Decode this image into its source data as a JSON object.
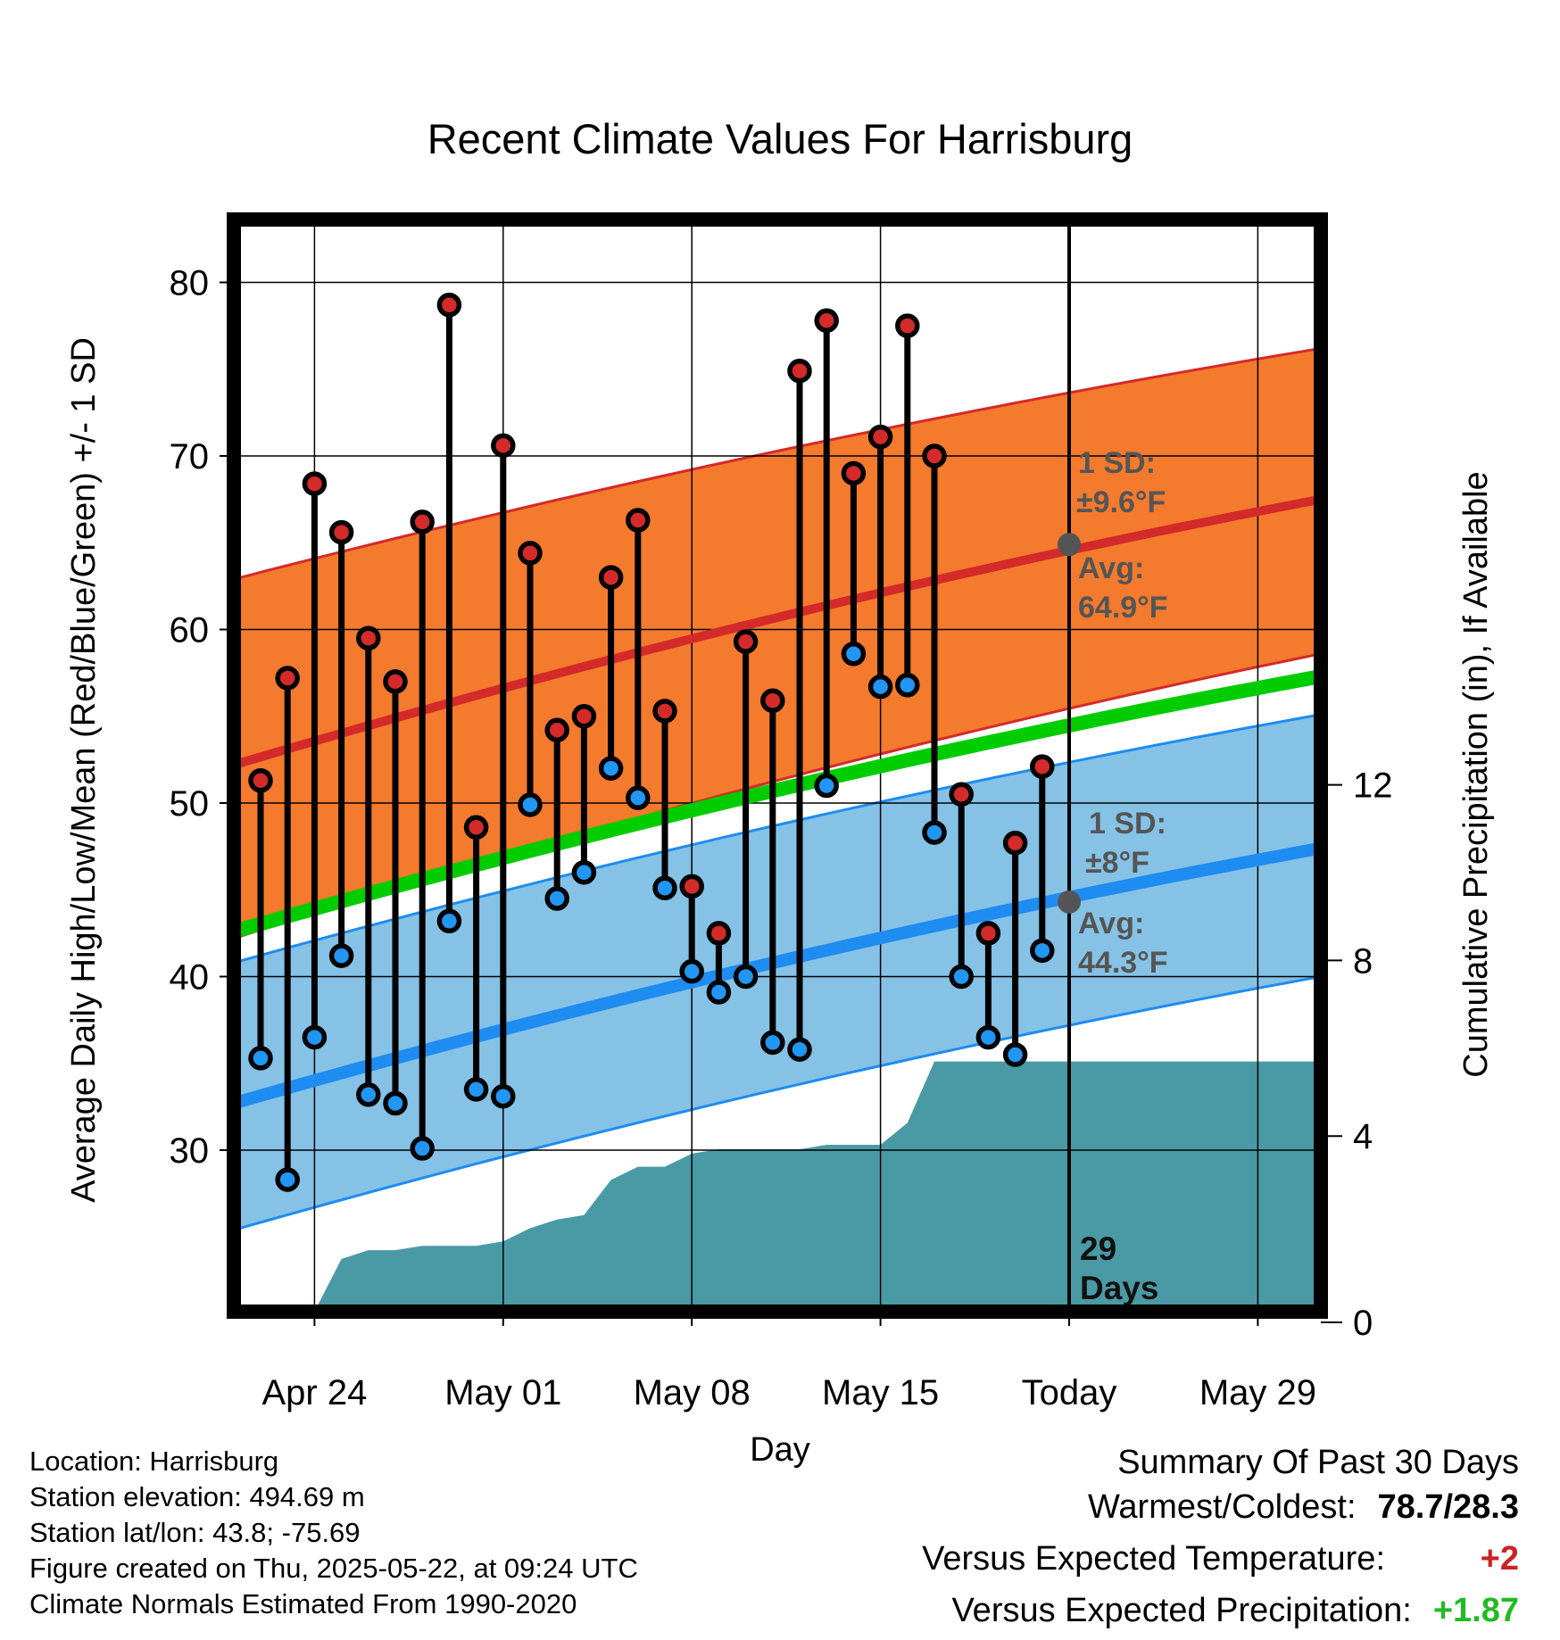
{
  "chart_data": {
    "type": "line",
    "title": "Recent Climate Values For Harrisburg",
    "xlabel": "Day",
    "ylabel": "Average Daily High/Low/Mean (Red/Blue/Green) +/- 1 SD",
    "y2label": "Cumulative Precipitation (in), If Available",
    "ylim": [
      20,
      84
    ],
    "y2lim": [
      0,
      20
    ],
    "x_tick_labels": [
      "Apr 24",
      "May 01",
      "May 08",
      "May 15",
      "Today",
      "May 29"
    ],
    "y_ticks": [
      30,
      40,
      50,
      60,
      70,
      80
    ],
    "y2_ticks": [
      0,
      4,
      8,
      12
    ],
    "grid": true,
    "today_label": "29\nDays",
    "normals": {
      "high_avg": [
        52.2,
        67.5
      ],
      "high_upper": [
        62.9,
        76.2
      ],
      "high_lower": [
        42.2,
        58.6
      ],
      "mean_avg": [
        42.6,
        57.3
      ],
      "low_avg": [
        32.7,
        47.4
      ],
      "low_upper": [
        40.8,
        55.1
      ],
      "low_lower": [
        25.4,
        40.0
      ]
    },
    "annotations": {
      "high_sd": "1 SD:",
      "high_sd_value": "±9.6°F",
      "high_avg_label": "Avg:",
      "high_avg_value": "64.9°F",
      "high_avg_at_today": 64.9,
      "low_sd": "1 SD:",
      "low_sd_value": "±8°F",
      "low_avg_label": "Avg:",
      "low_avg_value": "44.3°F",
      "low_avg_at_today": 44.3
    },
    "series": [
      {
        "name": "High",
        "values": [
          51.3,
          57.2,
          68.4,
          65.6,
          59.5,
          57.0,
          66.2,
          78.7,
          48.6,
          70.6,
          64.4,
          54.2,
          55.0,
          63.0,
          66.3,
          55.3,
          45.2,
          42.5,
          59.3,
          55.9,
          74.9,
          77.8,
          69.0,
          71.1,
          77.5,
          70.0,
          50.5,
          42.5,
          47.7,
          52.1
        ]
      },
      {
        "name": "Low",
        "values": [
          35.3,
          28.3,
          36.5,
          41.2,
          33.2,
          32.7,
          30.1,
          43.2,
          33.5,
          33.1,
          49.9,
          44.5,
          46.0,
          52.0,
          50.3,
          45.1,
          40.3,
          39.1,
          40.0,
          36.2,
          35.8,
          51.0,
          58.6,
          56.7,
          56.8,
          48.3,
          40.0,
          36.5,
          35.5,
          41.5
        ]
      },
      {
        "name": "Cumulative Precipitation",
        "values": [
          0.0,
          0.0,
          0.0,
          0.0,
          1.2,
          1.4,
          1.4,
          1.5,
          1.5,
          1.5,
          1.6,
          1.9,
          2.1,
          2.2,
          3.0,
          3.3,
          3.3,
          3.6,
          3.7,
          3.7,
          3.7,
          3.7,
          3.8,
          3.8,
          3.8,
          4.3,
          5.7,
          5.7,
          5.7,
          5.7,
          5.7,
          5.7,
          5.7,
          5.7,
          5.7,
          5.7,
          5.7,
          5.7,
          5.7,
          5.7,
          5.7,
          5.7
        ]
      }
    ]
  },
  "footer": {
    "location": "Location: Harrisburg",
    "elevation": "Station elevation: 494.69 m",
    "latlon": "Station lat/lon: 43.8; -75.69",
    "created": "Figure created on Thu, 2025-05-22, at 09:24 UTC",
    "normals": "Climate Normals Estimated From 1990-2020"
  },
  "summary": {
    "title": "Summary Of Past 30 Days",
    "warmest_coldest_label": "Warmest/Coldest:",
    "warmest_coldest_value": "78.7/28.3",
    "temp_label": "Versus Expected Temperature:",
    "temp_value": "+2",
    "precip_label": "Versus Expected Precipitation:",
    "precip_value": "+1.87"
  },
  "colors": {
    "high_band": "#f47a2d",
    "high_line": "#d42a2a",
    "low_band": "#85c2e6",
    "low_line": "#1e8cf0",
    "mean_line": "#00cc00",
    "precip": "#4a9aa5",
    "high_marker": "#d42a2a",
    "low_marker": "#2196f3",
    "annotation_text": "#555555"
  }
}
